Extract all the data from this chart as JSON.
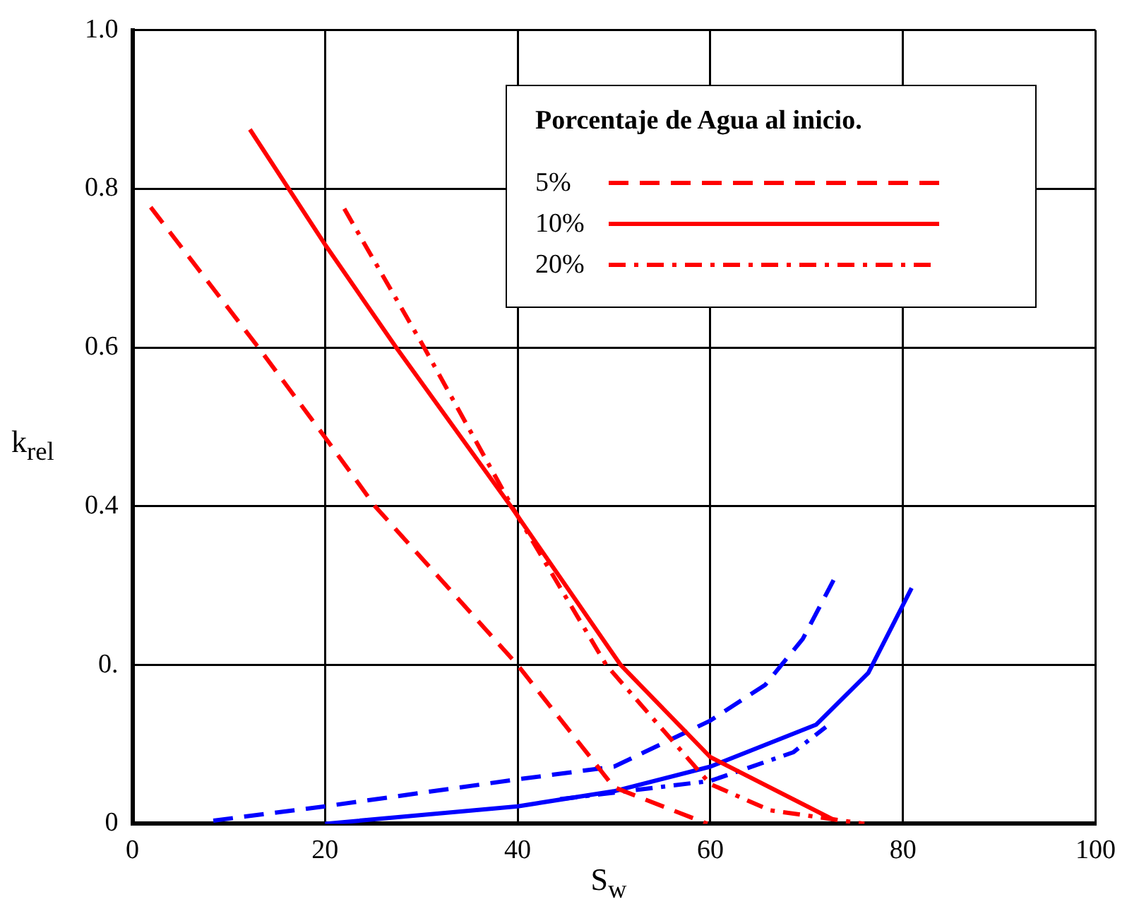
{
  "chart_data": {
    "type": "line",
    "xlabel": "S$_{w}$",
    "ylabel": "k$_{rel}$",
    "legend_title": "Porcentaje de Agua al inicio.",
    "legend": "top right",
    "grid": true,
    "marker": "none",
    "xlim": [
      0,
      100
    ],
    "xticks": [
      0,
      20,
      40,
      60,
      80,
      100
    ],
    "ylim": [
      0,
      1
    ],
    "yticks": [
      {
        "value": 0,
        "label": "0"
      },
      {
        "value": 0.2,
        "label": "0."
      },
      0.4,
      0.6,
      0.8,
      {
        "value": 1,
        "label": "1.0"
      }
    ],
    "series": [
      {
        "name": "5%",
        "color": "#ff0000",
        "line_style": "dashed",
        "x": [
          1.9,
          13.1,
          20,
          25.2,
          40,
          50,
          59.7
        ],
        "values": [
          0.777,
          0.6,
          0.487,
          0.4,
          0.2,
          0.046,
          0
        ]
      },
      {
        "name": "10%",
        "color": "#ff0000",
        "line_style": "solid",
        "x": [
          12.2,
          20,
          27.4,
          39.3,
          50.7,
          60,
          72.8
        ],
        "values": [
          0.875,
          0.73,
          0.6,
          0.4,
          0.2,
          0.084,
          0.005
        ]
      },
      {
        "name": "20%",
        "color": "#ff0000",
        "line_style": "dashdot",
        "x": [
          22,
          30.3,
          39.4,
          49.2,
          60,
          66.2,
          76
        ],
        "values": [
          0.775,
          0.6,
          0.4,
          0.2,
          0.05,
          0.017,
          0
        ]
      },
      {
        "color": "#0000ff",
        "line_style": "dashed",
        "x": [
          8.4,
          20,
          40,
          50,
          60,
          65.7,
          69.6,
          72.8
        ],
        "values": [
          0.004,
          0.022,
          0.056,
          0.072,
          0.13,
          0.175,
          0.233,
          0.307
        ]
      },
      {
        "color": "#0000ff",
        "line_style": "solid",
        "x": [
          20,
          40,
          50,
          60,
          71,
          76.4,
          80.9
        ],
        "values": [
          0,
          0.022,
          0.041,
          0.072,
          0.125,
          0.19,
          0.297
        ]
      },
      {
        "color": "#0000ff",
        "line_style": "dashdot",
        "x": [
          44.4,
          60,
          68.6,
          72
        ],
        "values": [
          0.031,
          0.054,
          0.09,
          0.122
        ]
      }
    ]
  }
}
